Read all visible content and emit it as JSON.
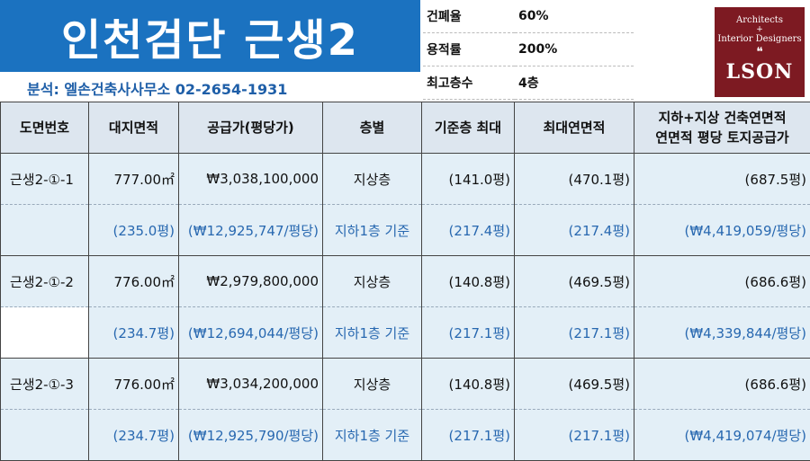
{
  "header": {
    "title": "인천검단 근생2",
    "analyst": "분석: 엘손건축사사무소 02-2654-1931"
  },
  "info": [
    {
      "label": "건폐율",
      "value": "60%"
    },
    {
      "label": "용적률",
      "value": "200%"
    },
    {
      "label": "최고층수",
      "value": "4층"
    }
  ],
  "logo": {
    "line1": "Architects",
    "line2": "+",
    "line3": "Interior Designers",
    "quote": "❝",
    "brand": "LSON"
  },
  "table": {
    "headers": [
      "도면번호",
      "대지면적",
      "공급가(평당가)",
      "층별",
      "기준층 최대",
      "최대연면적",
      "지하+지상 건축연면적",
      "연면적 평당 토지공급가"
    ],
    "lots": [
      {
        "id": "근생2-①-1",
        "area": "777.00㎡",
        "area_py": "(235.0평)",
        "price": "₩3,038,100,000",
        "price_py": "(₩12,925,747/평당)",
        "floor1": "지상층",
        "floor2": "지하1층 기준",
        "std1": "(141.0평)",
        "std2": "(217.4평)",
        "max1": "(470.1평)",
        "max2": "(217.4평)",
        "tot1": "(687.5평)",
        "tot2": "(₩4,419,059/평당)"
      },
      {
        "id": "근생2-①-2",
        "area": "776.00㎡",
        "area_py": "(234.7평)",
        "price": "₩2,979,800,000",
        "price_py": "(₩12,694,044/평당)",
        "floor1": "지상층",
        "floor2": "지하1층 기준",
        "std1": "(140.8평)",
        "std2": "(217.1평)",
        "max1": "(469.5평)",
        "max2": "(217.1평)",
        "tot1": "(686.6평)",
        "tot2": "(₩4,339,844/평당)"
      },
      {
        "id": "근생2-①-3",
        "area": "776.00㎡",
        "area_py": "(234.7평)",
        "price": "₩3,034,200,000",
        "price_py": "(₩12,925,790/평당)",
        "floor1": "지상층",
        "floor2": "지하1층 기준",
        "std1": "(140.8평)",
        "std2": "(217.1평)",
        "max1": "(469.5평)",
        "max2": "(217.1평)",
        "tot1": "(686.6평)",
        "tot2": "(₩4,419,074/평당)"
      }
    ]
  }
}
